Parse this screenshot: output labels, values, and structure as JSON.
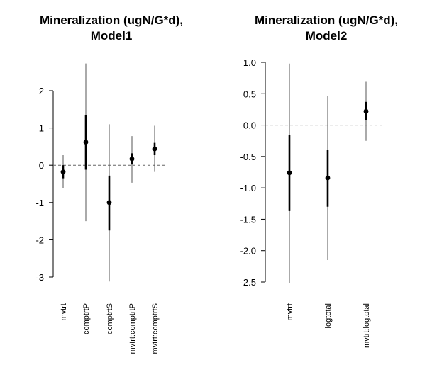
{
  "chart_data": [
    {
      "type": "coefficient-plot",
      "title_lines": [
        "Mineralization (ugN/G*d),",
        "Model1"
      ],
      "xlabel": "",
      "ylabel": "",
      "ylim": [
        -3,
        2
      ],
      "yticks": [
        2,
        1,
        0,
        -1,
        -2,
        -3
      ],
      "ytick_labels": [
        "2",
        "1",
        "0",
        "-1",
        "-2",
        "-3"
      ],
      "reference_line": 0,
      "grid": false,
      "categories": [
        "mvtrt",
        "comptrtP",
        "comptrtS",
        "mvtrt:comptrtP",
        "mvtrt:comptrtS"
      ],
      "estimates": [
        -0.18,
        0.62,
        -1.0,
        0.17,
        0.44
      ],
      "inner_interval": [
        [
          -0.35,
          0.0
        ],
        [
          -0.12,
          1.35
        ],
        [
          -1.75,
          -0.28
        ],
        [
          0.02,
          0.32
        ],
        [
          0.27,
          0.6
        ]
      ],
      "outer_interval": [
        [
          -0.62,
          0.27
        ],
        [
          -1.5,
          2.73
        ],
        [
          -3.12,
          1.1
        ],
        [
          -0.47,
          0.78
        ],
        [
          -0.18,
          1.06
        ]
      ]
    },
    {
      "type": "coefficient-plot",
      "title_lines": [
        "Mineralization (ugN/G*d),",
        "Model2"
      ],
      "xlabel": "",
      "ylabel": "",
      "ylim": [
        -2.5,
        1.0
      ],
      "yticks": [
        1.0,
        0.5,
        0.0,
        -0.5,
        -1.0,
        -1.5,
        -2.0,
        -2.5
      ],
      "ytick_labels": [
        "1.0",
        "0.5",
        "0.0",
        "-0.5",
        "-1.0",
        "-1.5",
        "-2.0",
        "-2.5"
      ],
      "reference_line": 0,
      "grid": false,
      "categories": [
        "mvtrt",
        "logtotal",
        "mvtrt:logtotal"
      ],
      "estimates": [
        -0.76,
        -0.84,
        0.22
      ],
      "inner_interval": [
        [
          -1.37,
          -0.16
        ],
        [
          -1.3,
          -0.39
        ],
        [
          0.08,
          0.37
        ]
      ],
      "outer_interval": [
        [
          -2.52,
          0.98
        ],
        [
          -2.15,
          0.46
        ],
        [
          -0.25,
          0.69
        ]
      ]
    }
  ]
}
